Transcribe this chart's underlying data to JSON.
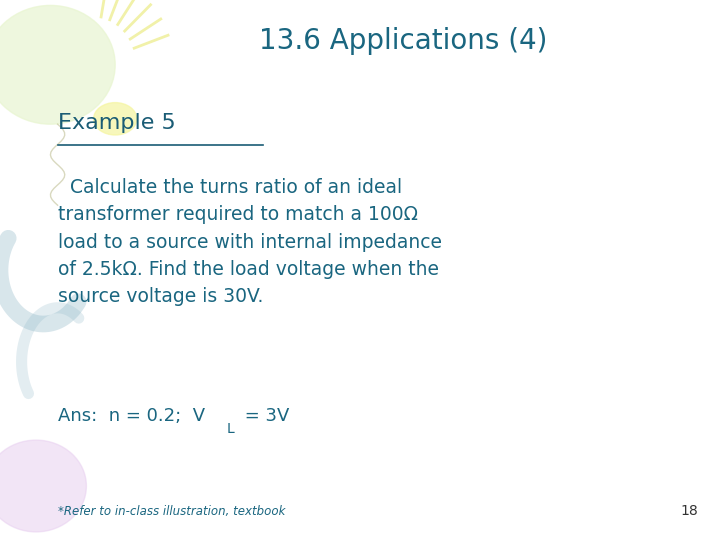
{
  "title": "13.6 Applications (4)",
  "title_color": "#1A6680",
  "title_fontsize": 20,
  "example_label": "Example 5",
  "example_color": "#1A5C75",
  "example_fontsize": 16,
  "body_text": "  Calculate the turns ratio of an ideal\ntransformer required to match a 100Ω\nload to a source with internal impedance\nof 2.5kΩ. Find the load voltage when the\nsource voltage is 30V.",
  "body_color": "#1A6680",
  "body_fontsize": 13.5,
  "ans_color": "#1A6680",
  "ans_fontsize": 13,
  "footnote_text": "*Refer to in-class illustration, textbook",
  "footnote_color": "#1A6680",
  "footnote_fontsize": 8.5,
  "page_number": "18",
  "page_color": "#333333",
  "page_fontsize": 10,
  "bg_color": "#FFFFFF",
  "underline_color": "#1A5C75",
  "balloon_green_color": "#e8f5d0",
  "balloon_yellow_color": "#fffff0",
  "balloon_blue_color": "#d0e8f0",
  "balloon_purple_color": "#e8d0f0"
}
